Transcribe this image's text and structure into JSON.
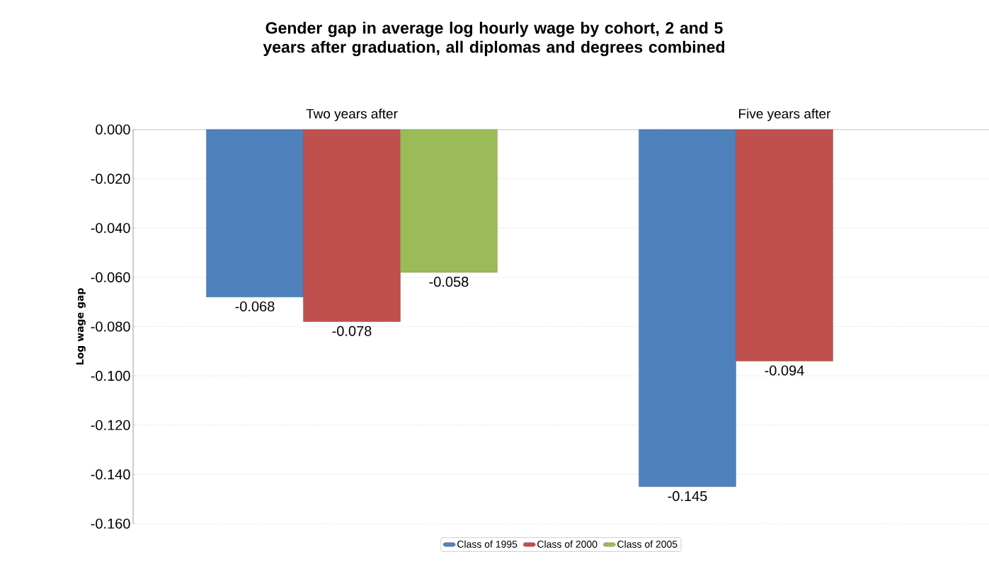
{
  "chart_data": {
    "type": "bar",
    "title": "Gender gap in average log hourly wage by cohort, 2 and 5 years after graduation, all diplomas and degrees combined",
    "ylabel": "Log wage gap",
    "categories": [
      "Two years after",
      "Five years after"
    ],
    "series": [
      {
        "name": "Class of 1995",
        "color": "#4f81bd",
        "values": [
          -0.068,
          -0.145
        ],
        "value_labels": [
          "-0.068",
          "-0.145"
        ]
      },
      {
        "name": "Class of 2000",
        "color": "#c0504d",
        "values": [
          -0.078,
          -0.094
        ],
        "value_labels": [
          "-0.078",
          "-0.094"
        ]
      },
      {
        "name": "Class of 2005",
        "color": "#9bbb59",
        "values": [
          -0.058,
          null
        ],
        "value_labels": [
          "-0.058",
          null
        ]
      }
    ],
    "ylim": [
      -0.16,
      0
    ],
    "yticks": [
      {
        "value": 0,
        "label": "0.000"
      },
      {
        "value": -0.02,
        "label": "-0.020"
      },
      {
        "value": -0.04,
        "label": "-0.040"
      },
      {
        "value": -0.06,
        "label": "-0.060"
      },
      {
        "value": -0.08,
        "label": "-0.080"
      },
      {
        "value": -0.1,
        "label": "-0.100"
      },
      {
        "value": -0.12,
        "label": "-0.120"
      },
      {
        "value": -0.14,
        "label": "-0.140"
      },
      {
        "value": -0.16,
        "label": "-0.160"
      }
    ],
    "grid": "y",
    "legend": "bottom"
  }
}
